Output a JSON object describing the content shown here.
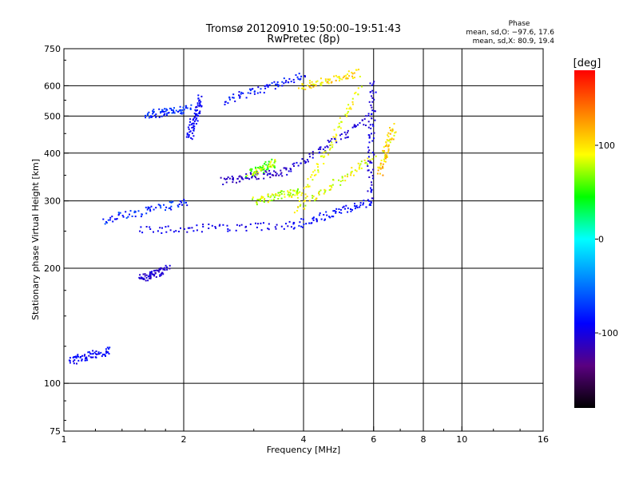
{
  "header": {
    "title_line1": "Tromsø 20120910 19:50:00–19:51:43",
    "title_line2": "RwPretec (8p)"
  },
  "stats": {
    "heading": "Phase",
    "line_o": "mean, sd,O: −97.6, 17.6",
    "line_x": "mean, sd,X: 80.9, 19.4"
  },
  "chart_data": {
    "type": "scatter",
    "title": "Tromsø 20120910 19:50:00–19:51:43",
    "subtitle": "RwPretec (8p)",
    "xlabel": "Frequency [MHz]",
    "ylabel": "Stationary phase Virtual Height [km]",
    "x_scale": "log",
    "y_scale": "log",
    "xlim": [
      1,
      16
    ],
    "ylim": [
      75,
      750
    ],
    "x_ticks": [
      1,
      2,
      4,
      6,
      8,
      10,
      16
    ],
    "x_tick_labels": [
      "1",
      "2",
      "4",
      "6",
      "8",
      "10",
      "16"
    ],
    "x_gridlines": [
      2,
      4,
      6,
      8,
      10
    ],
    "y_ticks": [
      75,
      100,
      200,
      300,
      400,
      500,
      600,
      750
    ],
    "y_tick_labels": [
      "75",
      "100",
      "200",
      "300",
      "400",
      "500",
      "600",
      "750"
    ],
    "y_gridlines": [
      100,
      200,
      300,
      400,
      500,
      600
    ],
    "grid": true,
    "colorbar": {
      "label": "[deg]",
      "range": [
        -180,
        180
      ],
      "ticks": [
        100,
        0,
        -100
      ],
      "tick_labels": [
        "100",
        "0",
        "-100"
      ],
      "stops": [
        "#000000",
        "#5a0080",
        "#0000ff",
        "#0080ff",
        "#00ffff",
        "#00ff00",
        "#ffff00",
        "#ff8000",
        "#ff0000"
      ]
    },
    "series": [
      {
        "segments": [
          {
            "x0": 1.03,
            "x1": 1.3,
            "y0": 115,
            "y1": 122,
            "phase": [
              -100,
              -80
            ]
          },
          {
            "x0": 1.55,
            "x1": 1.82,
            "y0": 188,
            "y1": 200,
            "phase": [
              -115,
              -95
            ]
          },
          {
            "x0": 1.25,
            "x1": 2.05,
            "y0": 268,
            "y1": 300,
            "phase": [
              -95,
              -60
            ]
          },
          {
            "x0": 1.55,
            "x1": 3.8,
            "y0": 253,
            "y1": 260,
            "phase": [
              -105,
              -90
            ]
          },
          {
            "x0": 3.8,
            "x1": 5.9,
            "y0": 260,
            "y1": 300,
            "phase": [
              -95,
              -80
            ]
          },
          {
            "x0": 5.85,
            "x1": 5.95,
            "y0": 300,
            "y1": 620,
            "phase": [
              -110,
              -90
            ]
          },
          {
            "x0": 2.5,
            "x1": 3.6,
            "y0": 340,
            "y1": 360,
            "phase": [
              -120,
              -100
            ]
          },
          {
            "x0": 3.6,
            "x1": 5.9,
            "y0": 360,
            "y1": 500,
            "phase": [
              -110,
              -95
            ]
          },
          {
            "x0": 1.6,
            "x1": 2.05,
            "y0": 505,
            "y1": 525,
            "phase": [
              -90,
              -60
            ]
          },
          {
            "x0": 2.05,
            "x1": 2.2,
            "y0": 440,
            "y1": 560,
            "phase": [
              -100,
              -85
            ]
          },
          {
            "x0": 2.5,
            "x1": 4.0,
            "y0": 550,
            "y1": 640,
            "phase": [
              -100,
              -70
            ]
          }
        ]
      },
      {
        "segments": [
          {
            "x0": 3.8,
            "x1": 5.95,
            "y0": 285,
            "y1": 390,
            "phase": [
              70,
              110
            ]
          },
          {
            "x0": 3.9,
            "x1": 5.5,
            "y0": 305,
            "y1": 590,
            "phase": [
              75,
              105
            ]
          },
          {
            "x0": 3.0,
            "x1": 3.9,
            "y0": 300,
            "y1": 320,
            "phase": [
              60,
              100
            ]
          },
          {
            "x0": 2.9,
            "x1": 3.4,
            "y0": 355,
            "y1": 380,
            "phase": [
              40,
              100
            ]
          },
          {
            "x0": 6.2,
            "x1": 6.7,
            "y0": 360,
            "y1": 470,
            "phase": [
              80,
              130
            ]
          },
          {
            "x0": 3.9,
            "x1": 5.5,
            "y0": 600,
            "y1": 650,
            "phase": [
              80,
              120
            ]
          }
        ]
      }
    ]
  }
}
